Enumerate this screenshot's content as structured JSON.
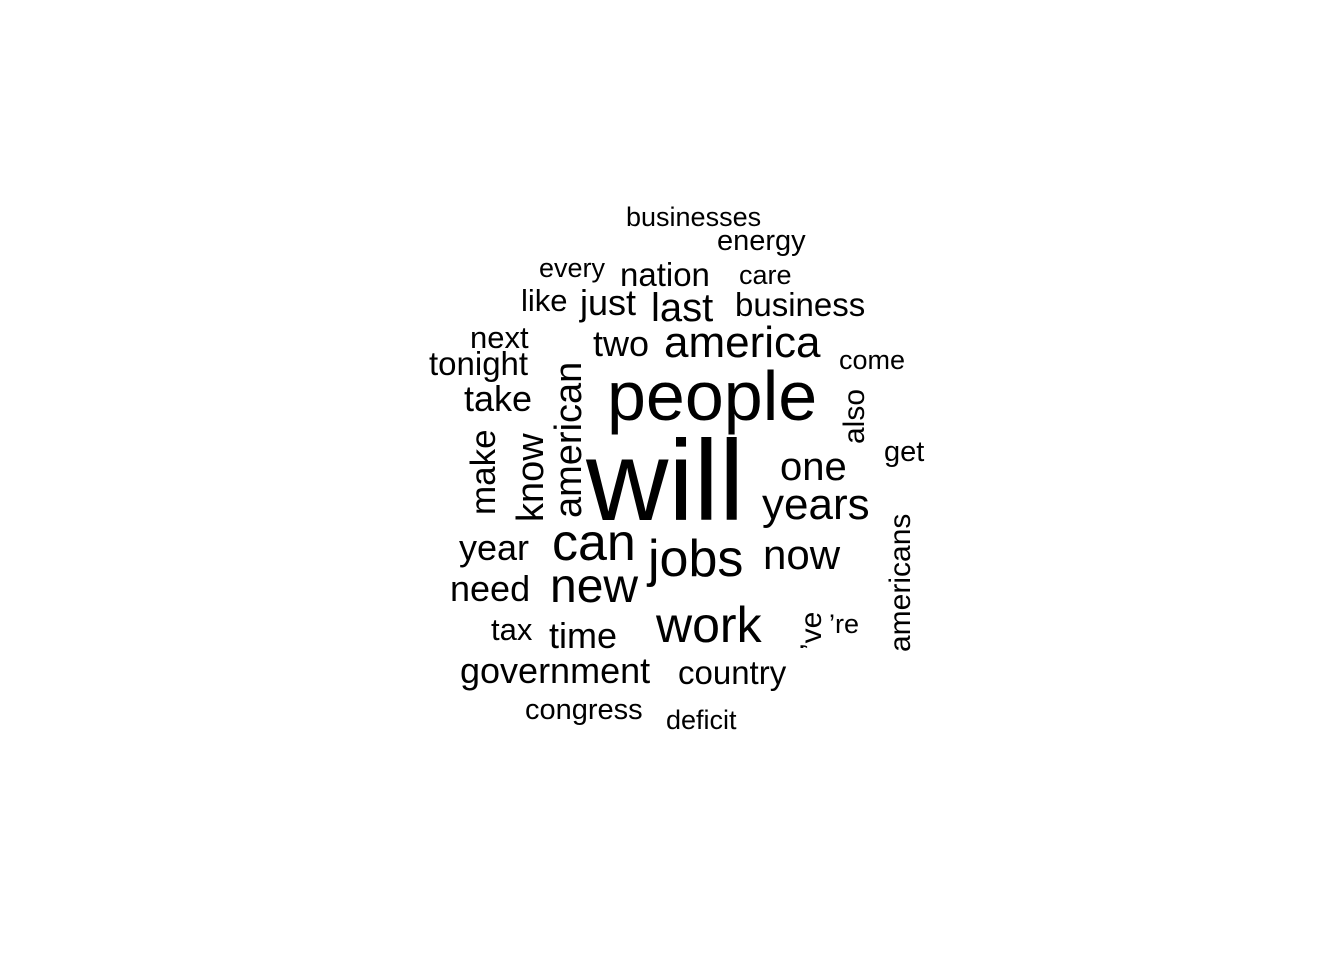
{
  "word_cloud": {
    "text_color": "#000000",
    "background": "#ffffff",
    "words": [
      {
        "text": "will"
      },
      {
        "text": "people"
      },
      {
        "text": "jobs"
      },
      {
        "text": "can"
      },
      {
        "text": "work"
      },
      {
        "text": "new"
      },
      {
        "text": "america"
      },
      {
        "text": "american"
      },
      {
        "text": "years"
      },
      {
        "text": "one"
      },
      {
        "text": "now"
      },
      {
        "text": "know"
      },
      {
        "text": "make"
      },
      {
        "text": "year"
      },
      {
        "text": "need"
      },
      {
        "text": "time"
      },
      {
        "text": "government"
      },
      {
        "text": "last"
      },
      {
        "text": "just"
      },
      {
        "text": "two"
      },
      {
        "text": "take"
      },
      {
        "text": "business"
      },
      {
        "text": "country"
      },
      {
        "text": "nation"
      },
      {
        "text": "americans"
      },
      {
        "text": "’ve"
      },
      {
        "text": "tonight"
      },
      {
        "text": "also"
      },
      {
        "text": "like"
      },
      {
        "text": "next"
      },
      {
        "text": "tax"
      },
      {
        "text": "congress"
      },
      {
        "text": "energy"
      },
      {
        "text": "get"
      },
      {
        "text": "come"
      },
      {
        "text": "care"
      },
      {
        "text": "businesses"
      },
      {
        "text": "every"
      },
      {
        "text": "deficit"
      },
      {
        "text": "’re"
      }
    ]
  }
}
